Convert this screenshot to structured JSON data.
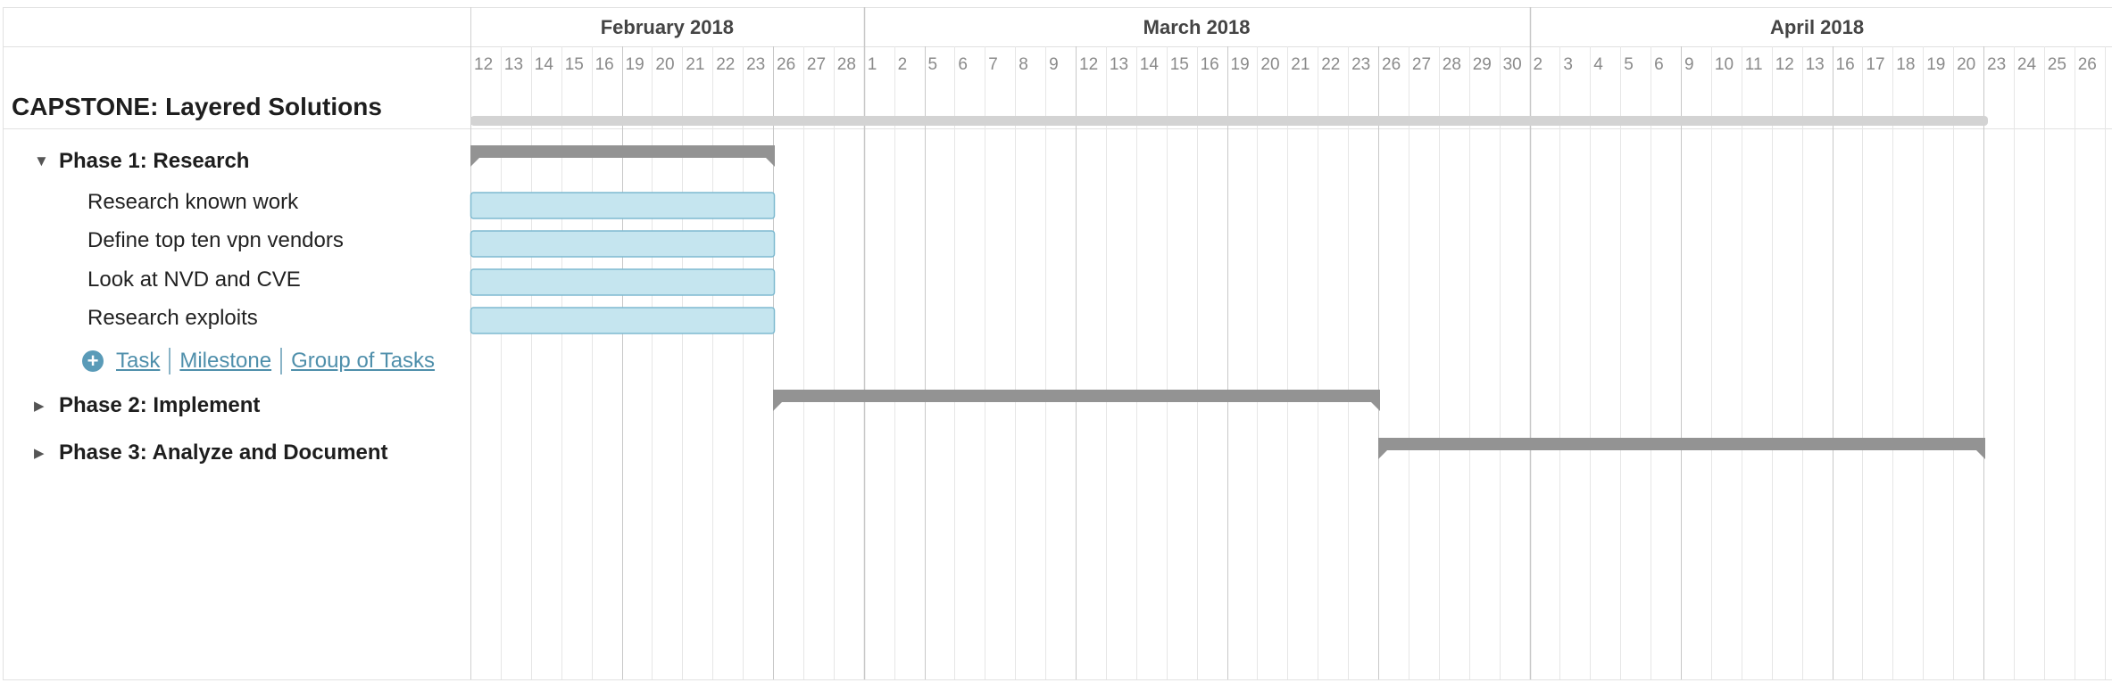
{
  "project": {
    "title": "CAPSTONE: Layered Solutions"
  },
  "months": [
    {
      "label": "February 2018"
    },
    {
      "label": "March 2018"
    },
    {
      "label": "April 2018"
    }
  ],
  "days": [
    "12",
    "13",
    "14",
    "15",
    "16",
    "19",
    "20",
    "21",
    "22",
    "23",
    "26",
    "27",
    "28",
    "1",
    "2",
    "5",
    "6",
    "7",
    "8",
    "9",
    "12",
    "13",
    "14",
    "15",
    "16",
    "19",
    "20",
    "21",
    "22",
    "23",
    "26",
    "27",
    "28",
    "29",
    "30",
    "2",
    "3",
    "4",
    "5",
    "6",
    "9",
    "10",
    "11",
    "12",
    "13",
    "16",
    "17",
    "18",
    "19",
    "20",
    "23",
    "24",
    "25",
    "26"
  ],
  "month_starts": [
    0,
    13,
    35
  ],
  "week_starts": [
    5,
    10,
    15,
    20,
    25,
    30,
    40,
    45,
    50
  ],
  "phases": [
    {
      "label": "Phase 1: Research",
      "expanded": true,
      "start_day": "Feb 12",
      "end_day": "Feb 26",
      "start_index": 0,
      "end_index": 10
    },
    {
      "label": "Phase 2: Implement",
      "expanded": false,
      "start_day": "Feb 26",
      "end_day": "Mar 26",
      "start_index": 10,
      "end_index": 30
    },
    {
      "label": "Phase 3: Analyze and Document",
      "expanded": false,
      "start_day": "Mar 26",
      "end_day": "Apr 23",
      "start_index": 30,
      "end_index": 50
    }
  ],
  "tasks": [
    {
      "label": "Research known work",
      "start_index": 0,
      "end_index": 10
    },
    {
      "label": "Define top ten vpn vendors",
      "start_index": 0,
      "end_index": 10
    },
    {
      "label": "Look at NVD and CVE",
      "start_index": 0,
      "end_index": 10
    },
    {
      "label": "Research exploits",
      "start_index": 0,
      "end_index": 10
    }
  ],
  "project_bar": {
    "start_index": 0,
    "end_index": 50
  },
  "add_links": {
    "task": "Task",
    "milestone": "Milestone",
    "group": "Group of Tasks"
  },
  "colors": {
    "phase_bar": "#939393",
    "task_fill": "#c5e5ef",
    "task_stroke": "#7fbad0",
    "project_bar": "#d3d3d3",
    "grid": "#e6e6e6",
    "grid_major": "#c8c8c8",
    "link": "#4f8fab"
  },
  "icons": {
    "expanded": "triangle-down-icon",
    "collapsed": "triangle-right-icon",
    "add": "plus-circle-icon"
  }
}
